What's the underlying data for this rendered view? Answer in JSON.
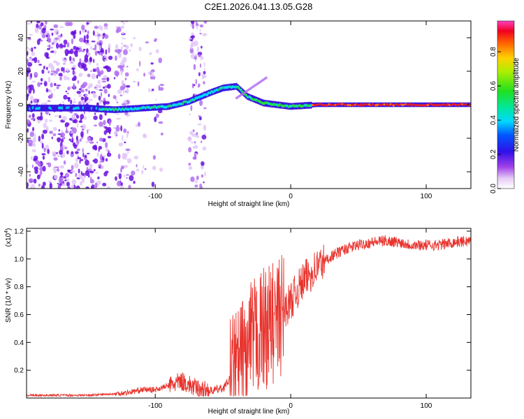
{
  "title": "C2E1.2026.041.13.05.G28",
  "chart_data": [
    {
      "type": "heatmap",
      "xlabel": "Height of straight line (km)",
      "ylabel": "Frequency (Hz)",
      "xlim": [
        -195,
        133
      ],
      "ylim": [
        -50,
        50
      ],
      "xticks": [
        -100,
        0,
        100
      ],
      "xtick_labels": [
        "-100",
        "0",
        "100"
      ],
      "yticks": [
        -40,
        -20,
        0,
        20,
        40
      ],
      "ytick_labels": [
        "-40",
        "-20",
        "0",
        "20",
        "40"
      ],
      "ridge": [
        {
          "x": -190,
          "f": -2
        },
        {
          "x": -170,
          "f": -2
        },
        {
          "x": -150,
          "f": -2
        },
        {
          "x": -130,
          "f": -3
        },
        {
          "x": -110,
          "f": -2
        },
        {
          "x": -90,
          "f": -1
        },
        {
          "x": -75,
          "f": 2
        },
        {
          "x": -60,
          "f": 7
        },
        {
          "x": -50,
          "f": 10
        },
        {
          "x": -40,
          "f": 11
        },
        {
          "x": -32,
          "f": 5
        },
        {
          "x": -20,
          "f": 1
        },
        {
          "x": -10,
          "f": 0
        },
        {
          "x": 0,
          "f": -1
        },
        {
          "x": 20,
          "f": 0
        },
        {
          "x": 60,
          "f": 0
        },
        {
          "x": 100,
          "f": 0
        },
        {
          "x": 133,
          "f": 0
        }
      ],
      "colorbar": {
        "label": "Normalized spectral amplitude",
        "ticks": [
          0.0,
          0.2,
          0.4,
          0.6,
          0.8
        ],
        "tick_labels": [
          "0.0",
          "0.2",
          "0.4",
          "0.6",
          "0.8"
        ],
        "range": [
          0,
          0.98
        ]
      }
    },
    {
      "type": "line",
      "xlabel": "Height of straight line (km)",
      "ylabel": "SNR (10 * v/v)",
      "scale_label": "(x10",
      "scale_exp": "4",
      "scale_close": ")",
      "xlim": [
        -195,
        133
      ],
      "ylim": [
        0,
        1.22
      ],
      "xticks": [
        -100,
        0,
        100
      ],
      "xtick_labels": [
        "-100",
        "0",
        "100"
      ],
      "yticks": [
        0.2,
        0.4,
        0.6,
        0.8,
        1.0,
        1.2
      ],
      "ytick_labels": [
        "0.2",
        "0.4",
        "0.6",
        "0.8",
        "1.0",
        "1.2"
      ],
      "color": "#e8332d",
      "series": [
        {
          "name": "SNR",
          "x": [
            -195,
            -170,
            -150,
            -130,
            -120,
            -110,
            -100,
            -90,
            -80,
            -70,
            -60,
            -50,
            -40,
            -30,
            -20,
            -10,
            0,
            10,
            20,
            30,
            40,
            50,
            60,
            70,
            80,
            90,
            100,
            110,
            120,
            133
          ],
          "values": [
            0.02,
            0.02,
            0.02,
            0.03,
            0.04,
            0.06,
            0.06,
            0.09,
            0.12,
            0.07,
            0.05,
            0.07,
            0.2,
            0.38,
            0.5,
            0.55,
            0.7,
            0.85,
            0.95,
            1.02,
            1.07,
            1.1,
            1.12,
            1.13,
            1.12,
            1.1,
            1.1,
            1.1,
            1.12,
            1.13
          ]
        }
      ]
    }
  ]
}
